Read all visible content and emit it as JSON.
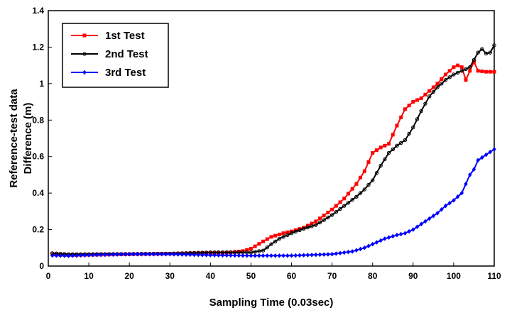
{
  "chart_data": {
    "type": "line",
    "title": "",
    "xlabel": "Sampling Time (0.03sec)",
    "ylabel_line1": "Reference-test data",
    "ylabel_line2": "Difference (m)",
    "xlim": [
      0,
      110
    ],
    "ylim": [
      0,
      1.4
    ],
    "xticks": [
      0,
      10,
      20,
      30,
      40,
      50,
      60,
      70,
      80,
      90,
      100,
      110
    ],
    "yticks": [
      0,
      0.2,
      0.4,
      0.6,
      0.8,
      1,
      1.2,
      1.4
    ],
    "xtick_labels": [
      "0",
      "10",
      "20",
      "30",
      "40",
      "50",
      "60",
      "70",
      "80",
      "90",
      "100",
      "110"
    ],
    "ytick_labels": [
      "0",
      "0.2",
      "0.4",
      "0.6",
      "0.8",
      "1",
      "1.2",
      "1.4"
    ],
    "legend_position": "top-left",
    "series": [
      {
        "name": "1st Test",
        "color": "#ff0000",
        "marker": "square",
        "points": [
          [
            1,
            0.065
          ],
          [
            5,
            0.06
          ],
          [
            10,
            0.062
          ],
          [
            20,
            0.065
          ],
          [
            30,
            0.068
          ],
          [
            40,
            0.072
          ],
          [
            45,
            0.075
          ],
          [
            48,
            0.082
          ],
          [
            50,
            0.095
          ],
          [
            53,
            0.135
          ],
          [
            55,
            0.16
          ],
          [
            58,
            0.18
          ],
          [
            60,
            0.19
          ],
          [
            63,
            0.21
          ],
          [
            66,
            0.245
          ],
          [
            70,
            0.31
          ],
          [
            73,
            0.37
          ],
          [
            76,
            0.45
          ],
          [
            78,
            0.52
          ],
          [
            80,
            0.62
          ],
          [
            82,
            0.65
          ],
          [
            84,
            0.67
          ],
          [
            86,
            0.77
          ],
          [
            88,
            0.86
          ],
          [
            90,
            0.9
          ],
          [
            92,
            0.92
          ],
          [
            94,
            0.96
          ],
          [
            96,
            1.0
          ],
          [
            98,
            1.05
          ],
          [
            100,
            1.09
          ],
          [
            101,
            1.1
          ],
          [
            102,
            1.09
          ],
          [
            103,
            1.02
          ],
          [
            104,
            1.07
          ],
          [
            105,
            1.12
          ],
          [
            106,
            1.07
          ],
          [
            108,
            1.065
          ],
          [
            110,
            1.065
          ]
        ]
      },
      {
        "name": "2nd Test",
        "color": "#000000",
        "marker": "circle",
        "points": [
          [
            1,
            0.07
          ],
          [
            5,
            0.065
          ],
          [
            10,
            0.065
          ],
          [
            20,
            0.066
          ],
          [
            30,
            0.068
          ],
          [
            40,
            0.075
          ],
          [
            50,
            0.075
          ],
          [
            53,
            0.085
          ],
          [
            55,
            0.12
          ],
          [
            57,
            0.15
          ],
          [
            60,
            0.18
          ],
          [
            63,
            0.205
          ],
          [
            66,
            0.225
          ],
          [
            70,
            0.28
          ],
          [
            73,
            0.33
          ],
          [
            76,
            0.38
          ],
          [
            78,
            0.42
          ],
          [
            80,
            0.47
          ],
          [
            82,
            0.55
          ],
          [
            84,
            0.62
          ],
          [
            86,
            0.66
          ],
          [
            88,
            0.69
          ],
          [
            90,
            0.76
          ],
          [
            92,
            0.85
          ],
          [
            94,
            0.93
          ],
          [
            96,
            0.98
          ],
          [
            98,
            1.02
          ],
          [
            100,
            1.05
          ],
          [
            102,
            1.07
          ],
          [
            104,
            1.09
          ],
          [
            106,
            1.17
          ],
          [
            107,
            1.19
          ],
          [
            108,
            1.165
          ],
          [
            109,
            1.17
          ],
          [
            110,
            1.21
          ]
        ]
      },
      {
        "name": "3rd Test",
        "color": "#0000ff",
        "marker": "diamond",
        "points": [
          [
            1,
            0.058
          ],
          [
            5,
            0.056
          ],
          [
            10,
            0.06
          ],
          [
            20,
            0.065
          ],
          [
            30,
            0.065
          ],
          [
            40,
            0.06
          ],
          [
            50,
            0.057
          ],
          [
            60,
            0.057
          ],
          [
            70,
            0.065
          ],
          [
            75,
            0.08
          ],
          [
            78,
            0.1
          ],
          [
            80,
            0.12
          ],
          [
            83,
            0.15
          ],
          [
            86,
            0.17
          ],
          [
            88,
            0.18
          ],
          [
            90,
            0.2
          ],
          [
            92,
            0.23
          ],
          [
            94,
            0.26
          ],
          [
            96,
            0.29
          ],
          [
            98,
            0.33
          ],
          [
            100,
            0.36
          ],
          [
            102,
            0.4
          ],
          [
            103,
            0.45
          ],
          [
            104,
            0.5
          ],
          [
            105,
            0.53
          ],
          [
            106,
            0.58
          ],
          [
            108,
            0.61
          ],
          [
            110,
            0.64
          ]
        ]
      }
    ]
  }
}
